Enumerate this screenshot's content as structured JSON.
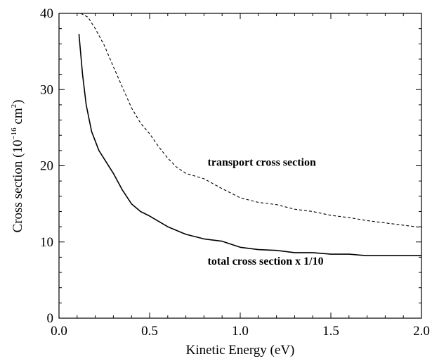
{
  "chart_data": {
    "type": "line",
    "title": "",
    "xlabel": "Kinetic Energy (eV)",
    "ylabel_parts": {
      "prefix": "Cross section (10",
      "exp1": "−16",
      "middle": " cm",
      "exp2": "2",
      "suffix": ")"
    },
    "xlim": [
      0.0,
      2.0
    ],
    "ylim": [
      0,
      40
    ],
    "x_ticks": [
      "0.0",
      "0.5",
      "1.0",
      "1.5",
      "2.0"
    ],
    "y_ticks": [
      "0",
      "10",
      "20",
      "30",
      "40"
    ],
    "grid": false,
    "legend": "none",
    "annotations": [
      {
        "text": "transport cross section",
        "x": 0.82,
        "y": 20.0
      },
      {
        "text": "total cross section x 1/10",
        "x": 0.82,
        "y": 7.0
      }
    ],
    "series": [
      {
        "style": "dashed",
        "color": "#000000",
        "x": [
          0.12,
          0.16,
          0.2,
          0.25,
          0.3,
          0.35,
          0.4,
          0.45,
          0.5,
          0.55,
          0.6,
          0.65,
          0.7,
          0.8,
          0.9,
          1.0,
          1.1,
          1.2,
          1.3,
          1.4,
          1.5,
          1.6,
          1.7,
          1.8,
          1.9,
          2.0
        ],
        "y": [
          40.0,
          39.5,
          38.0,
          35.8,
          33.0,
          30.3,
          27.6,
          25.6,
          24.2,
          22.5,
          21.0,
          19.8,
          19.0,
          18.3,
          17.0,
          15.8,
          15.2,
          14.9,
          14.3,
          14.0,
          13.5,
          13.2,
          12.8,
          12.5,
          12.2,
          11.9
        ]
      },
      {
        "style": "solid",
        "color": "#000000",
        "x": [
          0.11,
          0.13,
          0.15,
          0.18,
          0.22,
          0.26,
          0.3,
          0.35,
          0.4,
          0.45,
          0.5,
          0.6,
          0.7,
          0.8,
          0.9,
          1.0,
          1.1,
          1.2,
          1.3,
          1.4,
          1.5,
          1.6,
          1.7,
          1.8,
          1.9,
          2.0
        ],
        "y": [
          37.3,
          32.0,
          28.0,
          24.5,
          22.0,
          20.5,
          19.0,
          16.8,
          15.0,
          14.0,
          13.4,
          12.0,
          11.0,
          10.4,
          10.1,
          9.3,
          9.0,
          8.9,
          8.6,
          8.6,
          8.4,
          8.4,
          8.2,
          8.2,
          8.2,
          8.2
        ]
      }
    ]
  }
}
